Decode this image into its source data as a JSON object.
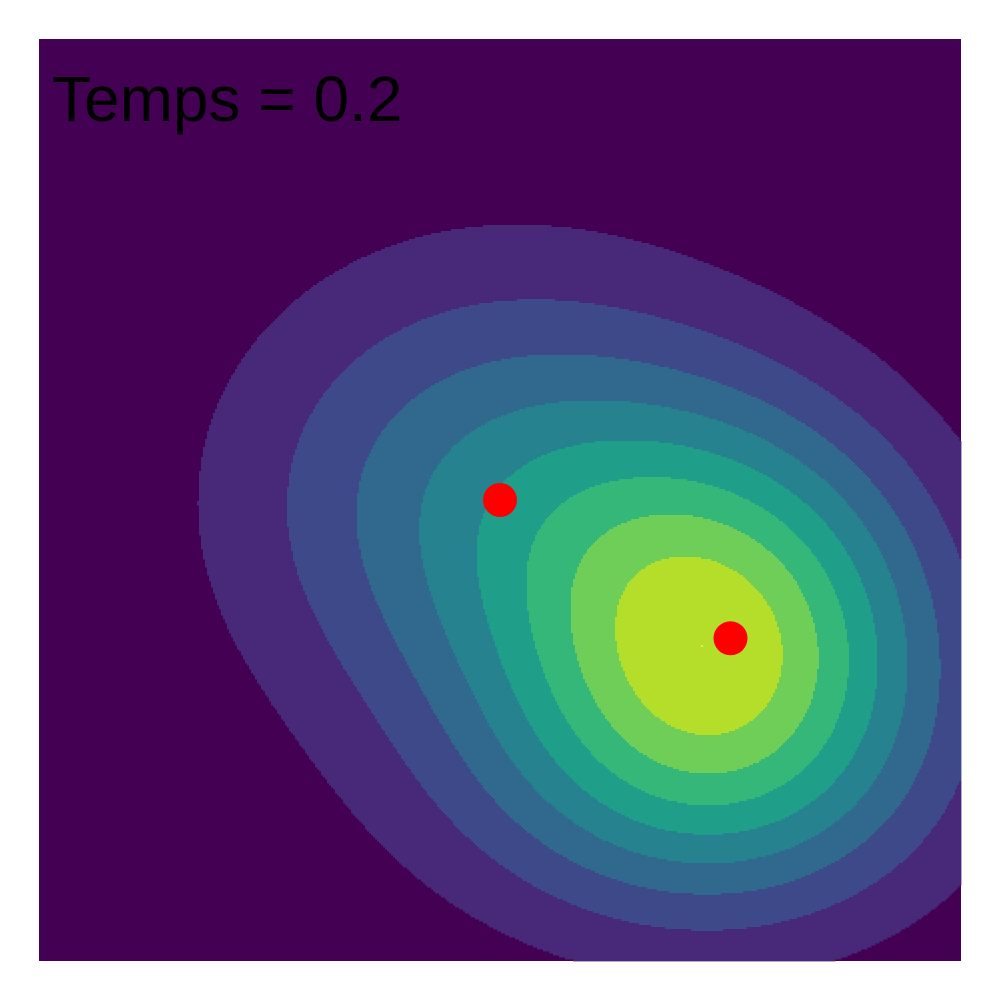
{
  "chart_data": {
    "type": "heatmap",
    "title": "Temps = 0.2",
    "xlabel": "",
    "ylabel": "",
    "x_range": [
      0,
      1
    ],
    "y_range": [
      0,
      1
    ],
    "grid": false,
    "legend": "none",
    "colormap": "viridis",
    "levels": 9,
    "colors": [
      "#440154",
      "#482878",
      "#3e4989",
      "#31688e",
      "#26828e",
      "#1f9e89",
      "#35b779",
      "#6ece58",
      "#b5de2b",
      "#fde725"
    ],
    "field": [
      {
        "x": 0.5,
        "y": 0.5,
        "amplitude": 0.55,
        "sigma_x": 0.2,
        "sigma_y": 0.18
      },
      {
        "x": 0.75,
        "y": 0.35,
        "amplitude": 1.0,
        "sigma_x": 0.16,
        "sigma_y": 0.16
      },
      {
        "x": 0.7,
        "y": 0.18,
        "amplitude": 0.3,
        "sigma_x": 0.2,
        "sigma_y": 0.12
      }
    ],
    "points": [
      {
        "x": 0.5,
        "y": 0.5,
        "color": "#ff0000"
      },
      {
        "x": 0.75,
        "y": 0.35,
        "color": "#ff0000"
      }
    ]
  }
}
